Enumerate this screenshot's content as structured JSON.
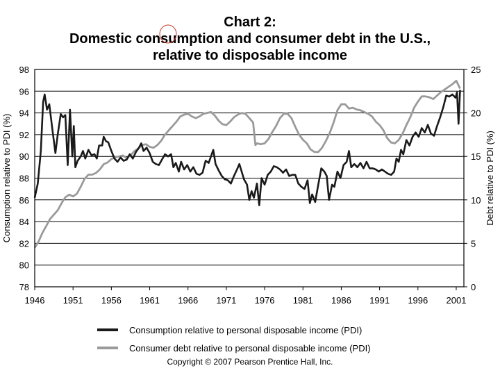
{
  "chart_data": {
    "type": "line",
    "title": "Chart 2:",
    "subtitle": "Domestic consumption and consumer debt in the U.S.,",
    "subtitle2": "relative to disposable income",
    "ylabel": "Consumption relative to PDI (%)",
    "y2label": "Debt relative to PDI (%)",
    "xlabel": "",
    "xlim": [
      1946,
      2002
    ],
    "ylim": [
      78,
      98
    ],
    "y2lim": [
      0,
      25
    ],
    "x_ticks": [
      "1946",
      "1951",
      "1956",
      "1961",
      "1966",
      "1971",
      "1976",
      "1981",
      "1986",
      "1991",
      "1996",
      "2001"
    ],
    "y_ticks": [
      "78",
      "80",
      "82",
      "84",
      "86",
      "88",
      "90",
      "92",
      "94",
      "96",
      "98"
    ],
    "y2_ticks": [
      "0",
      "5",
      "10",
      "15",
      "20",
      "25"
    ],
    "grid": true,
    "legend_position": "bottom",
    "series": [
      {
        "name": "Consumption relative to personal disposable income (PDI)",
        "axis": "left",
        "color": "#1a1a1a",
        "points": [
          [
            1946,
            86.2
          ],
          [
            1946.4,
            87.5
          ],
          [
            1946.8,
            90.5
          ],
          [
            1947.1,
            95.0
          ],
          [
            1947.3,
            95.7
          ],
          [
            1947.6,
            94.3
          ],
          [
            1947.9,
            94.8
          ],
          [
            1948.3,
            92.5
          ],
          [
            1948.7,
            90.3
          ],
          [
            1949.0,
            92.0
          ],
          [
            1949.4,
            93.9
          ],
          [
            1949.7,
            93.6
          ],
          [
            1950.0,
            93.8
          ],
          [
            1950.3,
            89.2
          ],
          [
            1950.6,
            94.3
          ],
          [
            1950.9,
            90.0
          ],
          [
            1951.1,
            92.8
          ],
          [
            1951.3,
            89.0
          ],
          [
            1951.6,
            89.6
          ],
          [
            1952.0,
            90.0
          ],
          [
            1952.3,
            90.5
          ],
          [
            1952.6,
            89.8
          ],
          [
            1953.0,
            90.6
          ],
          [
            1953.4,
            90.1
          ],
          [
            1953.8,
            90.2
          ],
          [
            1954.1,
            89.8
          ],
          [
            1954.4,
            91.0
          ],
          [
            1954.8,
            91.0
          ],
          [
            1955.0,
            91.8
          ],
          [
            1955.3,
            91.4
          ],
          [
            1955.6,
            91.3
          ],
          [
            1956.0,
            90.5
          ],
          [
            1956.4,
            89.8
          ],
          [
            1956.8,
            89.5
          ],
          [
            1957.2,
            89.9
          ],
          [
            1957.6,
            89.6
          ],
          [
            1958.0,
            89.7
          ],
          [
            1958.4,
            90.2
          ],
          [
            1958.8,
            89.8
          ],
          [
            1959.2,
            90.4
          ],
          [
            1959.6,
            90.8
          ],
          [
            1959.9,
            91.2
          ],
          [
            1960.2,
            90.5
          ],
          [
            1960.6,
            90.8
          ],
          [
            1961.0,
            90.3
          ],
          [
            1961.4,
            89.5
          ],
          [
            1961.8,
            89.3
          ],
          [
            1962.2,
            89.2
          ],
          [
            1962.6,
            89.7
          ],
          [
            1963.0,
            90.2
          ],
          [
            1963.4,
            90.0
          ],
          [
            1963.8,
            90.2
          ],
          [
            1964.1,
            89.0
          ],
          [
            1964.4,
            89.4
          ],
          [
            1964.8,
            88.6
          ],
          [
            1965.1,
            89.5
          ],
          [
            1965.5,
            88.8
          ],
          [
            1965.9,
            89.2
          ],
          [
            1966.3,
            88.6
          ],
          [
            1966.7,
            89.0
          ],
          [
            1967.1,
            88.4
          ],
          [
            1967.5,
            88.3
          ],
          [
            1967.9,
            88.5
          ],
          [
            1968.3,
            89.6
          ],
          [
            1968.7,
            89.4
          ],
          [
            1969.0,
            90.0
          ],
          [
            1969.3,
            90.6
          ],
          [
            1969.6,
            89.3
          ],
          [
            1970.0,
            88.7
          ],
          [
            1970.4,
            88.2
          ],
          [
            1970.8,
            87.9
          ],
          [
            1971.2,
            87.8
          ],
          [
            1971.6,
            87.5
          ],
          [
            1972.0,
            88.2
          ],
          [
            1972.4,
            88.8
          ],
          [
            1972.7,
            89.3
          ],
          [
            1973.0,
            88.6
          ],
          [
            1973.3,
            87.9
          ],
          [
            1973.7,
            87.4
          ],
          [
            1974.0,
            86.0
          ],
          [
            1974.3,
            86.8
          ],
          [
            1974.6,
            86.2
          ],
          [
            1975.0,
            87.5
          ],
          [
            1975.3,
            85.5
          ],
          [
            1975.6,
            88.0
          ],
          [
            1976.0,
            87.4
          ],
          [
            1976.4,
            88.3
          ],
          [
            1976.8,
            88.6
          ],
          [
            1977.2,
            89.1
          ],
          [
            1977.6,
            89.0
          ],
          [
            1978.0,
            88.8
          ],
          [
            1978.4,
            88.5
          ],
          [
            1978.8,
            88.8
          ],
          [
            1979.2,
            88.2
          ],
          [
            1979.6,
            88.3
          ],
          [
            1980.0,
            88.3
          ],
          [
            1980.4,
            87.5
          ],
          [
            1980.8,
            87.2
          ],
          [
            1981.2,
            87.0
          ],
          [
            1981.6,
            87.8
          ],
          [
            1981.9,
            85.7
          ],
          [
            1982.2,
            86.5
          ],
          [
            1982.6,
            85.8
          ],
          [
            1983.0,
            87.4
          ],
          [
            1983.4,
            88.9
          ],
          [
            1983.8,
            88.6
          ],
          [
            1984.1,
            88.2
          ],
          [
            1984.4,
            86.0
          ],
          [
            1984.8,
            87.4
          ],
          [
            1985.1,
            87.2
          ],
          [
            1985.5,
            88.6
          ],
          [
            1985.9,
            88.0
          ],
          [
            1986.3,
            89.2
          ],
          [
            1986.7,
            89.5
          ],
          [
            1987.0,
            90.5
          ],
          [
            1987.3,
            89.0
          ],
          [
            1987.7,
            89.3
          ],
          [
            1988.1,
            89.0
          ],
          [
            1988.5,
            89.4
          ],
          [
            1988.9,
            88.9
          ],
          [
            1989.3,
            89.5
          ],
          [
            1989.7,
            88.9
          ],
          [
            1990.1,
            88.9
          ],
          [
            1990.5,
            88.8
          ],
          [
            1990.9,
            88.6
          ],
          [
            1991.3,
            88.8
          ],
          [
            1991.7,
            88.6
          ],
          [
            1992.1,
            88.4
          ],
          [
            1992.5,
            88.3
          ],
          [
            1992.9,
            88.6
          ],
          [
            1993.2,
            89.8
          ],
          [
            1993.5,
            89.5
          ],
          [
            1993.8,
            90.6
          ],
          [
            1994.1,
            90.2
          ],
          [
            1994.5,
            91.5
          ],
          [
            1994.9,
            91.0
          ],
          [
            1995.3,
            91.8
          ],
          [
            1995.7,
            92.2
          ],
          [
            1996.1,
            91.8
          ],
          [
            1996.5,
            92.6
          ],
          [
            1996.9,
            92.2
          ],
          [
            1997.3,
            92.9
          ],
          [
            1997.7,
            92.1
          ],
          [
            1998.1,
            91.9
          ],
          [
            1998.5,
            92.8
          ],
          [
            1998.9,
            93.6
          ],
          [
            1999.3,
            94.5
          ],
          [
            1999.7,
            95.6
          ],
          [
            2000.1,
            95.5
          ],
          [
            2000.5,
            95.7
          ],
          [
            2000.9,
            95.4
          ],
          [
            2001.1,
            95.9
          ],
          [
            2001.3,
            93.0
          ],
          [
            2001.5,
            96.1
          ]
        ]
      },
      {
        "name": "Consumer debt relative to personal disposable income (PDI)",
        "axis": "right",
        "color": "#9a9a9a",
        "points": [
          [
            1946,
            4.5
          ],
          [
            1946.5,
            5.2
          ],
          [
            1947,
            6.2
          ],
          [
            1947.5,
            7.0
          ],
          [
            1948,
            7.8
          ],
          [
            1948.5,
            8.3
          ],
          [
            1949,
            8.8
          ],
          [
            1949.5,
            9.6
          ],
          [
            1950,
            10.3
          ],
          [
            1950.5,
            10.6
          ],
          [
            1951,
            10.4
          ],
          [
            1951.5,
            10.7
          ],
          [
            1952,
            11.5
          ],
          [
            1952.5,
            12.4
          ],
          [
            1953,
            12.9
          ],
          [
            1953.5,
            12.9
          ],
          [
            1954,
            13.1
          ],
          [
            1954.5,
            13.5
          ],
          [
            1955,
            14.1
          ],
          [
            1955.5,
            14.3
          ],
          [
            1956,
            14.7
          ],
          [
            1956.5,
            14.9
          ],
          [
            1957,
            15.0
          ],
          [
            1957.5,
            15.1
          ],
          [
            1958,
            14.8
          ],
          [
            1958.5,
            15.1
          ],
          [
            1959,
            15.6
          ],
          [
            1959.5,
            15.9
          ],
          [
            1960,
            16.3
          ],
          [
            1960.5,
            16.4
          ],
          [
            1961,
            16.1
          ],
          [
            1961.5,
            16.0
          ],
          [
            1962,
            16.3
          ],
          [
            1962.5,
            16.8
          ],
          [
            1963,
            17.5
          ],
          [
            1963.5,
            18.0
          ],
          [
            1964,
            18.5
          ],
          [
            1964.5,
            19.0
          ],
          [
            1965,
            19.6
          ],
          [
            1965.5,
            19.8
          ],
          [
            1966,
            19.9
          ],
          [
            1966.5,
            19.6
          ],
          [
            1967,
            19.4
          ],
          [
            1967.5,
            19.6
          ],
          [
            1968,
            19.9
          ],
          [
            1968.5,
            20.0
          ],
          [
            1969,
            20.1
          ],
          [
            1969.5,
            19.7
          ],
          [
            1970,
            19.1
          ],
          [
            1970.5,
            18.7
          ],
          [
            1971,
            18.6
          ],
          [
            1971.5,
            19.0
          ],
          [
            1972,
            19.5
          ],
          [
            1972.5,
            19.8
          ],
          [
            1973,
            20.0
          ],
          [
            1973.5,
            19.9
          ],
          [
            1974,
            19.4
          ],
          [
            1974.5,
            18.9
          ],
          [
            1974.8,
            16.3
          ],
          [
            1975,
            16.5
          ],
          [
            1975.5,
            16.4
          ],
          [
            1976,
            16.5
          ],
          [
            1976.5,
            17.0
          ],
          [
            1977,
            17.8
          ],
          [
            1977.5,
            18.5
          ],
          [
            1978,
            19.4
          ],
          [
            1978.5,
            19.9
          ],
          [
            1979,
            19.9
          ],
          [
            1979.5,
            19.4
          ],
          [
            1980,
            18.4
          ],
          [
            1980.5,
            17.5
          ],
          [
            1981,
            16.9
          ],
          [
            1981.5,
            16.5
          ],
          [
            1982,
            15.8
          ],
          [
            1982.5,
            15.5
          ],
          [
            1983,
            15.5
          ],
          [
            1983.5,
            16.0
          ],
          [
            1984,
            16.8
          ],
          [
            1984.5,
            17.7
          ],
          [
            1985,
            18.9
          ],
          [
            1985.5,
            20.3
          ],
          [
            1986,
            21.0
          ],
          [
            1986.5,
            21.0
          ],
          [
            1987,
            20.5
          ],
          [
            1987.5,
            20.6
          ],
          [
            1988,
            20.4
          ],
          [
            1988.5,
            20.3
          ],
          [
            1989,
            20.1
          ],
          [
            1989.5,
            19.9
          ],
          [
            1990,
            19.6
          ],
          [
            1990.5,
            19.0
          ],
          [
            1991,
            18.6
          ],
          [
            1991.5,
            18.0
          ],
          [
            1992,
            17.1
          ],
          [
            1992.5,
            16.6
          ],
          [
            1993,
            16.5
          ],
          [
            1993.5,
            16.9
          ],
          [
            1994,
            17.6
          ],
          [
            1994.5,
            18.6
          ],
          [
            1995,
            19.5
          ],
          [
            1995.5,
            20.6
          ],
          [
            1996,
            21.3
          ],
          [
            1996.5,
            21.9
          ],
          [
            1997,
            21.9
          ],
          [
            1997.5,
            21.8
          ],
          [
            1998,
            21.6
          ],
          [
            1998.5,
            22.0
          ],
          [
            1999,
            22.4
          ],
          [
            1999.5,
            22.7
          ],
          [
            2000,
            23.0
          ],
          [
            2000.5,
            23.3
          ],
          [
            2001,
            23.7
          ],
          [
            2001.5,
            22.8
          ]
        ]
      }
    ]
  },
  "copyright": "Copyright © 2007 Pearson Prentice Hall, Inc."
}
